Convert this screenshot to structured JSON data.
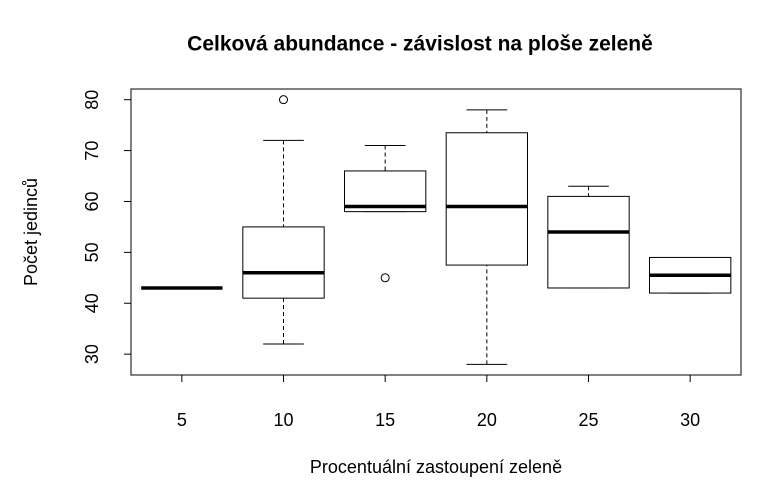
{
  "chart_data": {
    "type": "box",
    "title": "Celková abundance - závislost na ploše zeleně",
    "x_label": "Procentuální zastoupení zeleně",
    "y_label": "Počet jedinců",
    "categories": [
      "5",
      "10",
      "15",
      "20",
      "25",
      "30"
    ],
    "boxes": [
      {
        "min": 43,
        "q1": 43,
        "median": 43,
        "q3": 43,
        "max": 43,
        "outliers": []
      },
      {
        "min": 32,
        "q1": 41,
        "median": 46,
        "q3": 55,
        "max": 72,
        "outliers": [
          80
        ]
      },
      {
        "min": 58,
        "q1": 58,
        "median": 59,
        "q3": 66,
        "max": 71,
        "outliers": [
          45
        ]
      },
      {
        "min": 28,
        "q1": 47.5,
        "median": 59,
        "q3": 73.5,
        "max": 78,
        "outliers": []
      },
      {
        "min": 43,
        "q1": 43,
        "median": 54,
        "q3": 61,
        "max": 63,
        "outliers": []
      },
      {
        "min": 42,
        "q1": 42,
        "median": 45.5,
        "q3": 49,
        "max": 49,
        "outliers": []
      }
    ],
    "color": "#000000",
    "ylim": [
      25.9,
      82.1
    ],
    "yticks": [
      30,
      40,
      50,
      60,
      70,
      80
    ]
  }
}
